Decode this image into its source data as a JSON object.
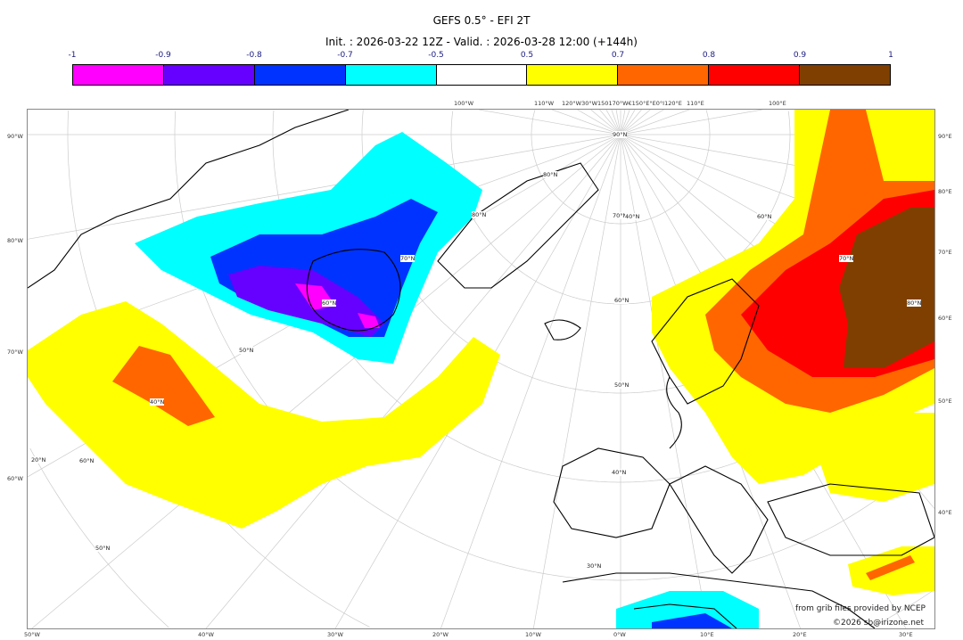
{
  "title": "GEFS 0.5° - EFI 2T",
  "subtitle": "Init. : 2026-03-22 12Z - Valid. : 2026-03-28 12:00 (+144h)",
  "colorbar": {
    "ticks": [
      "-1",
      "-0.9",
      "-0.8",
      "-0.7",
      "-0.5",
      "0.5",
      "0.7",
      "0.8",
      "0.9",
      "1"
    ],
    "colors": [
      "#ff00ff",
      "#6600ff",
      "#0033ff",
      "#00ffff",
      "#ffffff",
      "#ffff00",
      "#ff6600",
      "#ff0000",
      "#7f3f00"
    ]
  },
  "map": {
    "top_labels": [
      "100°W",
      "110°W",
      "120°W30°W150170°W€150°E°E0°I120°E",
      "110°E",
      "100°E"
    ],
    "bottom_labels": [
      "50°W",
      "40°W",
      "30°W",
      "20°W",
      "10°W",
      "0°W",
      "10°E",
      "20°E",
      "30°E"
    ],
    "left_labels": [
      "90°W",
      "80°W",
      "70°W",
      "60°W"
    ],
    "right_labels": [
      "90°E",
      "80°E",
      "70°E",
      "60°E",
      "50°E",
      "40°E"
    ],
    "inner_labels": [
      "90°N",
      "80°N",
      "70°N",
      "60°N",
      "50°N",
      "40°N",
      "30°N",
      "20°N",
      "80°N",
      "70°N",
      "60°N",
      "50°N",
      "40°N",
      "60°N",
      "70°N",
      "80°N",
      "60°N",
      "50°N",
      "40°N"
    ]
  },
  "credits": {
    "source": "from grib files provided by NCEP",
    "copyright": "©2026 sb@irizone.net"
  }
}
